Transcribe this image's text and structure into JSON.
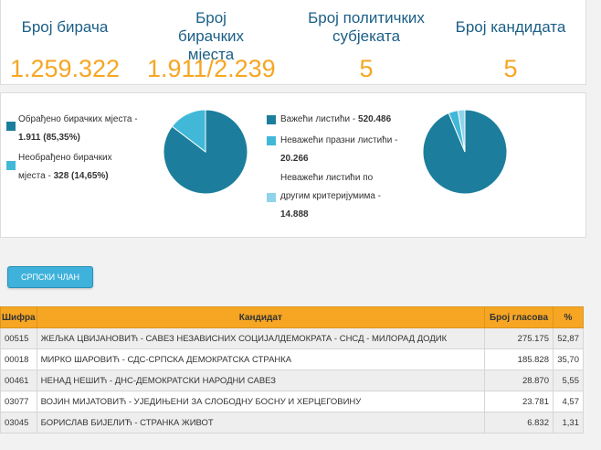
{
  "stats": [
    {
      "label": "Број бирача",
      "value": "1.259.322"
    },
    {
      "label": "Број бирачких мјеста",
      "value": "1.911/2.239"
    },
    {
      "label": "Број политичких субјеката",
      "value": "5"
    },
    {
      "label": "Број кандидата",
      "value": "5"
    }
  ],
  "polling": {
    "processed_label": "Обрађено бирачких мјеста -",
    "processed_value": "1.911 (85,35%)",
    "unprocessed_label1": "Необрађено бирачких",
    "unprocessed_label2": "мјеста - ",
    "unprocessed_value": "328 (14,65%)",
    "colors": {
      "processed": "#1c7e9c",
      "unprocessed": "#41b8d8"
    }
  },
  "ballots": {
    "valid_label": "Важећи листићи - ",
    "valid_value": "520.486",
    "blank_label": "Неважећи празни листићи -",
    "blank_value": "20.266",
    "other_label1": "Неважећи листићи по",
    "other_label2": "другим критеријумима -",
    "other_value": "14.888",
    "colors": {
      "valid": "#1c7e9c",
      "blank": "#41b8d8",
      "other": "#8fd4ea"
    }
  },
  "chart_data": [
    {
      "type": "pie",
      "categories": [
        "Обрађено бирачких мјеста",
        "Необрађено бирачких мјеста"
      ],
      "values": [
        85.35,
        14.65
      ]
    },
    {
      "type": "pie",
      "categories": [
        "Важећи листићи",
        "Неважећи празни листићи",
        "Неважећи листићи по другим критеријумима"
      ],
      "values": [
        520486,
        20266,
        14888
      ]
    }
  ],
  "party_button": "СРПСКИ ЧЛАН",
  "table": {
    "headers": {
      "code": "Шифра",
      "candidate": "Кандидат",
      "votes": "Број гласова",
      "pct": "%"
    },
    "rows": [
      {
        "code": "00515",
        "candidate": "ЖЕЉКА ЦВИЈАНОВИЋ - САВЕЗ НЕЗАВИСНИХ СОЦИЈАЛДЕМОКРАТА - СНСД - МИЛОРАД ДОДИК",
        "votes": "275.175",
        "pct": "52,87"
      },
      {
        "code": "00018",
        "candidate": "МИРКО ШАРОВИЋ - СДС-СРПСКА ДЕМОКРАТСКА СТРАНКА",
        "votes": "185.828",
        "pct": "35,70"
      },
      {
        "code": "00461",
        "candidate": "НЕНАД НЕШИЋ - ДНС-ДЕМОКРАТСКИ НАРОДНИ САВЕЗ",
        "votes": "28.870",
        "pct": "5,55"
      },
      {
        "code": "03077",
        "candidate": "ВОЈИН МИЈАТОВИЋ - УЈЕДИЊЕНИ ЗА СЛОБОДНУ БОСНУ И ХЕРЦЕГОВИНУ",
        "votes": "23.781",
        "pct": "4,57"
      },
      {
        "code": "03045",
        "candidate": "БОРИСЛАВ БИЈЕЛИЋ - СТРАНКА ЖИВОТ",
        "votes": "6.832",
        "pct": "1,31"
      }
    ]
  }
}
